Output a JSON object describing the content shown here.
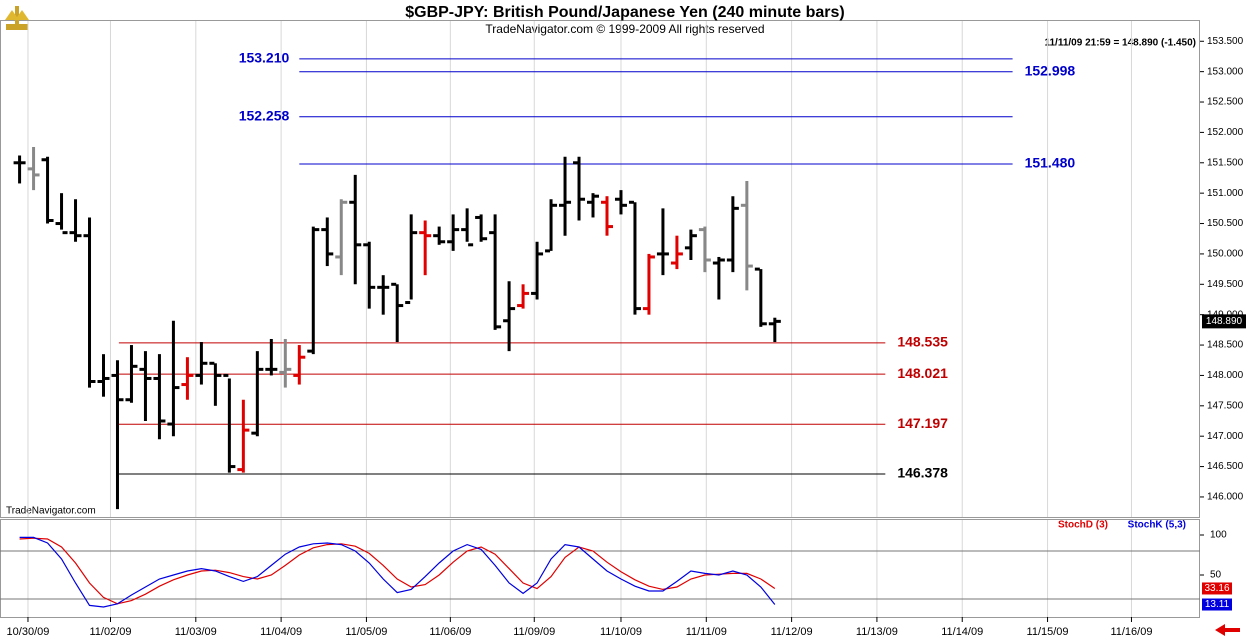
{
  "chart_data": [
    {
      "type": "ohlc",
      "title": "$GBP-JPY:  British Pound/Japanese Yen  (240 minute bars)",
      "subtitle": "TradeNavigator.com © 1999-2009 All rights reserved",
      "info": "11/11/09 21:59 = 148.890 (-1.450)",
      "watermark": "TradeNavigator.com",
      "last_price": {
        "value": 148.89,
        "label": "148.890"
      },
      "open": [
        151.5,
        151.4,
        151.55,
        150.5,
        150.35,
        150.3,
        147.9,
        148.0,
        147.6,
        148.1,
        147.95,
        147.2,
        147.85,
        148.0,
        148.2,
        148.0,
        146.45,
        147.05,
        148.1,
        148.05,
        148.0,
        148.4,
        150.4,
        149.95,
        150.85,
        150.15,
        149.45,
        149.5,
        149.2,
        150.35,
        150.3,
        150.2,
        150.4,
        150.6,
        150.35,
        148.9,
        149.15,
        149.35,
        150.05,
        150.8,
        151.5,
        150.85,
        150.85,
        150.9,
        150.85,
        149.1,
        150.0,
        149.85,
        150.1,
        150.4,
        149.85,
        149.9,
        150.8,
        149.75,
        148.85
      ],
      "high": [
        151.62,
        151.76,
        151.6,
        151.0,
        150.9,
        150.6,
        148.35,
        148.25,
        148.5,
        148.4,
        148.35,
        148.9,
        148.3,
        148.55,
        148.2,
        147.95,
        147.6,
        148.4,
        148.6,
        148.6,
        148.5,
        150.45,
        150.6,
        150.9,
        151.3,
        150.2,
        149.65,
        149.5,
        150.65,
        150.55,
        150.45,
        150.65,
        150.75,
        150.65,
        150.65,
        149.55,
        149.5,
        150.2,
        150.9,
        151.6,
        151.6,
        151.0,
        150.95,
        151.05,
        150.85,
        150.0,
        150.75,
        150.3,
        150.4,
        150.45,
        149.95,
        150.95,
        151.2,
        149.75,
        148.95
      ],
      "low": [
        151.16,
        151.05,
        150.5,
        150.4,
        150.2,
        147.8,
        147.65,
        145.8,
        147.55,
        147.25,
        146.95,
        147.0,
        147.6,
        147.85,
        147.5,
        146.4,
        146.4,
        147.0,
        148.0,
        147.8,
        147.85,
        148.35,
        149.8,
        149.65,
        149.5,
        149.1,
        149.0,
        148.55,
        149.25,
        149.65,
        150.15,
        150.05,
        150.2,
        150.2,
        148.75,
        148.4,
        149.1,
        149.25,
        150.05,
        150.3,
        150.55,
        150.6,
        150.3,
        150.65,
        149.0,
        149.0,
        149.65,
        149.75,
        149.9,
        149.7,
        149.25,
        149.7,
        149.4,
        148.8,
        148.55
      ],
      "close": [
        151.5,
        151.3,
        150.55,
        150.35,
        150.3,
        147.9,
        147.95,
        147.6,
        148.15,
        147.95,
        147.25,
        147.8,
        148.0,
        148.2,
        148.0,
        146.5,
        147.1,
        148.1,
        148.1,
        148.1,
        148.3,
        150.4,
        150.0,
        150.85,
        150.15,
        149.45,
        149.45,
        149.15,
        150.35,
        150.3,
        150.2,
        150.4,
        150.15,
        150.25,
        148.8,
        149.1,
        149.35,
        150.0,
        150.8,
        150.85,
        150.9,
        150.95,
        150.45,
        150.8,
        149.1,
        149.95,
        150.0,
        150.0,
        150.3,
        149.9,
        149.9,
        150.75,
        149.8,
        148.85,
        148.89
      ],
      "colors": [
        "#000",
        "#888",
        "#000",
        "#000",
        "#000",
        "#000",
        "#000",
        "#000",
        "#000",
        "#000",
        "#000",
        "#000",
        "#e00000",
        "#000",
        "#000",
        "#000",
        "#e00000",
        "#000",
        "#000",
        "#888",
        "#e00000",
        "#000",
        "#000",
        "#888",
        "#000",
        "#000",
        "#000",
        "#000",
        "#000",
        "#e00000",
        "#000",
        "#000",
        "#000",
        "#000",
        "#000",
        "#000",
        "#e00000",
        "#000",
        "#000",
        "#000",
        "#000",
        "#000",
        "#e00000",
        "#000",
        "#000",
        "#e00000",
        "#000",
        "#e00000",
        "#000",
        "#888",
        "#000",
        "#000",
        "#888",
        "#000",
        "#000"
      ],
      "levels": [
        {
          "value": 153.21,
          "label": "153.210",
          "color": "#0000cc",
          "side": "left",
          "from": 20.0,
          "to": 71.0
        },
        {
          "value": 152.998,
          "label": "152.998",
          "color": "#0000cc",
          "side": "right",
          "from": 20.0,
          "to": 71.0
        },
        {
          "value": 152.258,
          "label": "152.258",
          "color": "#0000cc",
          "side": "left",
          "from": 20.0,
          "to": 71.0
        },
        {
          "value": 151.48,
          "label": "151.480",
          "color": "#0000cc",
          "side": "right",
          "from": 20.0,
          "to": 71.0
        },
        {
          "value": 148.535,
          "label": "148.535",
          "color": "#c00000",
          "side": "right",
          "from": 7.1,
          "to": 61.9
        },
        {
          "value": 148.021,
          "label": "148.021",
          "color": "#c00000",
          "side": "right",
          "from": 7.1,
          "to": 61.9
        },
        {
          "value": 147.197,
          "label": "147.197",
          "color": "#c00000",
          "side": "right",
          "from": 7.1,
          "to": 61.9
        },
        {
          "value": 146.378,
          "label": "146.378",
          "color": "#000000",
          "side": "right",
          "from": 7.1,
          "to": 61.9
        }
      ],
      "xlim": [
        -1.4,
        84.4
      ],
      "ylim": [
        145.67,
        153.85
      ],
      "yticks": [
        {
          "value": 146,
          "label": "146.000"
        },
        {
          "value": 146.5,
          "label": "146.500"
        },
        {
          "value": 147,
          "label": "147.000"
        },
        {
          "value": 147.5,
          "label": "147.500"
        },
        {
          "value": 148,
          "label": "148.000"
        },
        {
          "value": 148.5,
          "label": "148.500"
        },
        {
          "value": 149,
          "label": "149.000"
        },
        {
          "value": 149.5,
          "label": "149.500"
        },
        {
          "value": 150,
          "label": "150.000"
        },
        {
          "value": 150.5,
          "label": "150.500"
        },
        {
          "value": 151,
          "label": "151.000"
        },
        {
          "value": 151.5,
          "label": "151.500"
        },
        {
          "value": 152,
          "label": "152.000"
        },
        {
          "value": 152.5,
          "label": "152.500"
        },
        {
          "value": 153,
          "label": "153.000"
        },
        {
          "value": 153.5,
          "label": "153.500"
        }
      ]
    },
    {
      "type": "line",
      "series": [
        {
          "name": "StochD (3)",
          "color": "#e00000",
          "values": [
            95,
            96,
            95,
            85,
            65,
            40,
            22,
            14,
            18,
            26,
            36,
            44,
            50,
            55,
            56,
            53,
            48,
            45,
            50,
            62,
            75,
            84,
            88,
            89,
            86,
            77,
            62,
            45,
            35,
            38,
            50,
            66,
            80,
            85,
            76,
            58,
            40,
            33,
            48,
            72,
            85,
            80,
            66,
            54,
            44,
            36,
            32,
            35,
            45,
            50,
            51,
            52,
            52,
            45,
            33.16
          ],
          "last_label": "33.16"
        },
        {
          "name": "StochK (5,3)",
          "color": "#0000e0",
          "values": [
            97,
            97,
            90,
            70,
            40,
            12,
            10,
            14,
            25,
            35,
            45,
            50,
            55,
            58,
            55,
            48,
            42,
            48,
            62,
            76,
            85,
            89,
            90,
            88,
            80,
            65,
            45,
            28,
            32,
            48,
            65,
            80,
            88,
            82,
            62,
            40,
            27,
            40,
            70,
            88,
            85,
            70,
            55,
            45,
            36,
            30,
            30,
            42,
            55,
            52,
            50,
            55,
            50,
            35,
            13.11
          ],
          "last_label": "13.11"
        }
      ],
      "hlines": [
        80,
        20
      ],
      "xlim": [
        -1.4,
        84.4
      ],
      "ylim": [
        -2.5,
        118.75
      ],
      "yticks": [
        100,
        50
      ],
      "xticks": [
        {
          "value": 0.6,
          "label": "10/30/09"
        },
        {
          "value": 6.5,
          "label": "11/02/09"
        },
        {
          "value": 12.6,
          "label": "11/03/09"
        },
        {
          "value": 18.7,
          "label": "11/04/09"
        },
        {
          "value": 24.8,
          "label": "11/05/09"
        },
        {
          "value": 30.8,
          "label": "11/06/09"
        },
        {
          "value": 36.8,
          "label": "11/09/09"
        },
        {
          "value": 43.0,
          "label": "11/10/09"
        },
        {
          "value": 49.1,
          "label": "11/11/09"
        },
        {
          "value": 55.2,
          "label": "11/12/09"
        },
        {
          "value": 61.3,
          "label": "11/13/09"
        },
        {
          "value": 67.4,
          "label": "11/14/09"
        },
        {
          "value": 73.5,
          "label": "11/15/09"
        },
        {
          "value": 79.5,
          "label": "11/16/09"
        }
      ],
      "grid": true
    }
  ]
}
